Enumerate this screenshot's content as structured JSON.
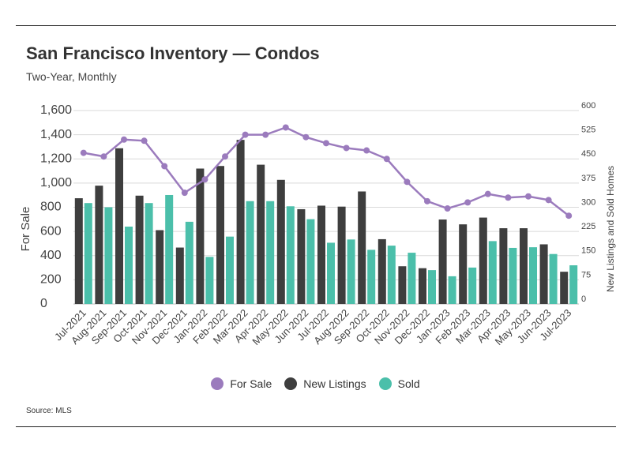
{
  "title": "San Francisco Inventory — Condos",
  "subtitle": "Two-Year, Monthly",
  "source": "Source: MLS",
  "colors": {
    "for_sale": "#9b7bbd",
    "new_listings": "#3e3e3e",
    "sold": "#4bbfaa",
    "grid": "#d9d9d9"
  },
  "chart_data": {
    "type": "bar",
    "categories": [
      "Jul-2021",
      "Aug-2021",
      "Sep-2021",
      "Oct-2021",
      "Nov-2021",
      "Dec-2021",
      "Jan-2022",
      "Feb-2022",
      "Mar-2022",
      "Apr-2022",
      "May-2022",
      "Jun-2022",
      "Jul-2022",
      "Aug-2022",
      "Sep-2022",
      "Oct-2022",
      "Nov-2022",
      "Dec-2022",
      "Jan-2023",
      "Feb-2023",
      "Mar-2023",
      "Apr-2023",
      "May-2023",
      "Jun-2023",
      "Jul-2023"
    ],
    "ylabel": "For Sale",
    "y2label": "New Listings and Sold Homes",
    "ylim": [
      0,
      1600
    ],
    "y2lim": [
      0,
      600
    ],
    "yticks": [
      "0",
      "200",
      "400",
      "600",
      "800",
      "1,000",
      "1,200",
      "1,400",
      "1,600"
    ],
    "y2ticks": [
      "0",
      "75",
      "150",
      "225",
      "300",
      "375",
      "450",
      "525",
      "600"
    ],
    "grid": true,
    "legend_position": "bottom",
    "series": [
      {
        "name": "For Sale",
        "kind": "line",
        "axis": "left",
        "values": [
          1250,
          1220,
          1360,
          1350,
          1140,
          920,
          1030,
          1220,
          1400,
          1400,
          1460,
          1380,
          1330,
          1290,
          1270,
          1200,
          1010,
          850,
          790,
          840,
          910,
          880,
          890,
          860,
          730
        ]
      },
      {
        "name": "New Listings",
        "kind": "bar",
        "axis": "right",
        "values": [
          328,
          367,
          483,
          336,
          229,
          175,
          420,
          428,
          509,
          432,
          385,
          294,
          305,
          302,
          349,
          201,
          117,
          111,
          262,
          247,
          268,
          235,
          235,
          185,
          100
        ]
      },
      {
        "name": "Sold",
        "kind": "bar",
        "axis": "right",
        "values": [
          313,
          300,
          240,
          313,
          338,
          255,
          146,
          209,
          319,
          319,
          303,
          263,
          190,
          200,
          168,
          181,
          159,
          105,
          86,
          113,
          195,
          174,
          176,
          155,
          120
        ]
      }
    ]
  }
}
